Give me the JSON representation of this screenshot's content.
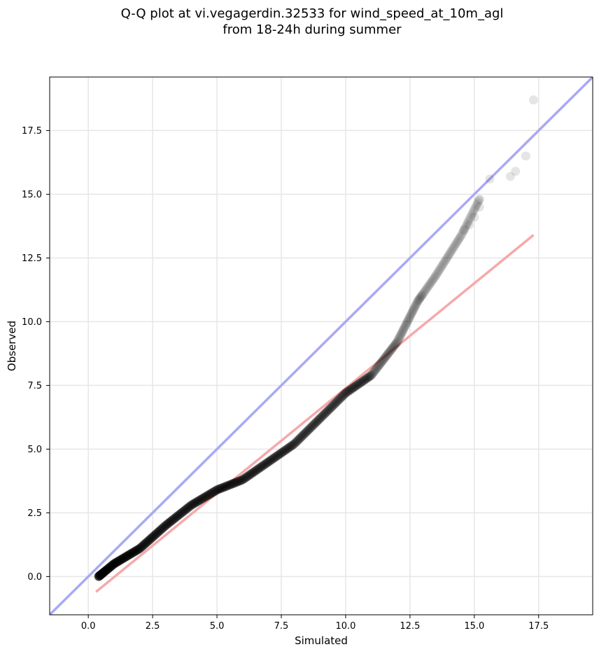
{
  "chart_data": {
    "type": "scatter",
    "title_line1": "Q-Q plot at vi.vegagerdin.32533 for wind_speed_at_10m_agl",
    "title_line2": "from 18-24h during summer",
    "xlabel": "Simulated",
    "ylabel": "Observed",
    "xlim": [
      -1.5,
      19.6
    ],
    "ylim": [
      -1.5,
      19.6
    ],
    "xticks": [
      "0.0",
      "2.5",
      "5.0",
      "7.5",
      "10.0",
      "12.5",
      "15.0",
      "17.5"
    ],
    "yticks": [
      "0.0",
      "2.5",
      "5.0",
      "7.5",
      "10.0",
      "12.5",
      "15.0",
      "17.5"
    ],
    "grid": true,
    "reference_line": {
      "description": "1:1 line",
      "color": "#a9a9f5",
      "x": [
        -1.5,
        19.6
      ],
      "y": [
        -1.5,
        19.6
      ]
    },
    "fit_line": {
      "description": "linear fit",
      "color": "#f5a9a9",
      "x": [
        0.3,
        17.3
      ],
      "y": [
        -0.6,
        13.4
      ]
    },
    "point_color": "#000000",
    "curve_knots": [
      [
        0.4,
        0.0
      ],
      [
        1.0,
        0.5
      ],
      [
        2.0,
        1.1
      ],
      [
        3.0,
        2.0
      ],
      [
        4.0,
        2.8
      ],
      [
        5.0,
        3.4
      ],
      [
        6.0,
        3.8
      ],
      [
        7.0,
        4.5
      ],
      [
        8.0,
        5.2
      ],
      [
        9.0,
        6.2
      ],
      [
        10.0,
        7.2
      ],
      [
        11.0,
        7.9
      ],
      [
        12.0,
        9.2
      ],
      [
        12.8,
        10.8
      ],
      [
        13.5,
        11.8
      ],
      [
        14.5,
        13.4
      ],
      [
        15.2,
        14.8
      ]
    ],
    "curve_point_count": 900,
    "tail_points": [
      [
        14.6,
        13.6
      ],
      [
        14.8,
        13.8
      ],
      [
        15.0,
        14.1
      ],
      [
        15.2,
        14.5
      ],
      [
        15.2,
        14.8
      ],
      [
        15.6,
        15.6
      ],
      [
        16.4,
        15.7
      ],
      [
        16.6,
        15.9
      ],
      [
        17.0,
        16.5
      ],
      [
        17.3,
        18.7
      ]
    ]
  }
}
